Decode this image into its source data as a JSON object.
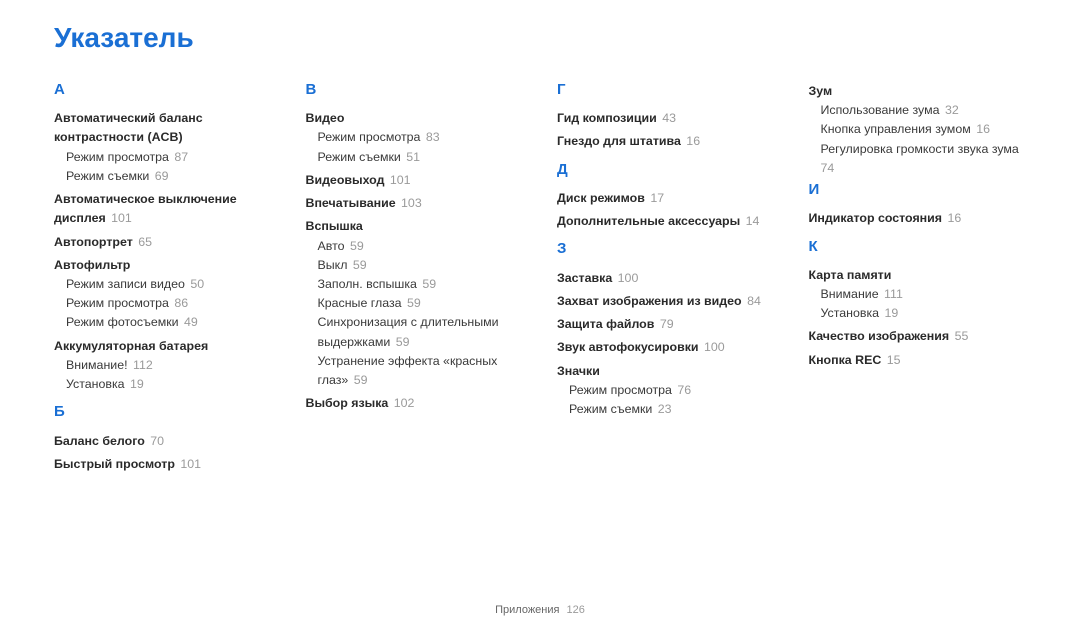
{
  "title": "Указатель",
  "footer": {
    "section": "Приложения",
    "page": "126"
  },
  "columns": [
    [
      {
        "type": "letter",
        "text": "А"
      },
      {
        "type": "head",
        "text": "Автоматический баланс контрастности (ACB)"
      },
      {
        "type": "sub",
        "text": "Режим просмотра",
        "page": "87"
      },
      {
        "type": "sub",
        "text": "Режим съемки",
        "page": "69"
      },
      {
        "type": "head",
        "text": "Автоматическое выключение дисплея",
        "page": "101"
      },
      {
        "type": "head",
        "text": "Автопортрет",
        "page": "65"
      },
      {
        "type": "head",
        "text": "Автофильтр"
      },
      {
        "type": "sub",
        "text": "Режим записи видео",
        "page": "50"
      },
      {
        "type": "sub",
        "text": "Режим просмотра",
        "page": "86"
      },
      {
        "type": "sub",
        "text": "Режим фотосъемки",
        "page": "49"
      },
      {
        "type": "head",
        "text": "Аккумуляторная батарея"
      },
      {
        "type": "sub",
        "text": "Внимание!",
        "page": "112"
      },
      {
        "type": "sub",
        "text": "Установка",
        "page": "19"
      },
      {
        "type": "letter",
        "text": "Б"
      },
      {
        "type": "head",
        "text": "Баланс белого",
        "page": "70"
      },
      {
        "type": "head",
        "text": "Быстрый просмотр",
        "page": "101"
      }
    ],
    [
      {
        "type": "letter",
        "text": "В"
      },
      {
        "type": "head",
        "text": "Видео"
      },
      {
        "type": "sub",
        "text": "Режим просмотра",
        "page": "83"
      },
      {
        "type": "sub",
        "text": "Режим съемки",
        "page": "51"
      },
      {
        "type": "head",
        "text": "Видеовыход",
        "page": "101"
      },
      {
        "type": "head",
        "text": "Впечатывание",
        "page": "103"
      },
      {
        "type": "head",
        "text": "Вспышка"
      },
      {
        "type": "sub",
        "text": "Авто",
        "page": "59"
      },
      {
        "type": "sub",
        "text": "Выкл",
        "page": "59"
      },
      {
        "type": "sub",
        "text": "Заполн. вспышка",
        "page": "59"
      },
      {
        "type": "sub",
        "text": "Красные глаза",
        "page": "59"
      },
      {
        "type": "sub",
        "text": "Синхронизация с длительными выдержками",
        "page": "59"
      },
      {
        "type": "sub",
        "text": "Устранение эффекта «красных глаз»",
        "page": "59"
      },
      {
        "type": "head",
        "text": "Выбор языка",
        "page": "102"
      }
    ],
    [
      {
        "type": "letter",
        "text": "Г"
      },
      {
        "type": "head",
        "text": "Гид композиции",
        "page": "43"
      },
      {
        "type": "head",
        "text": "Гнездо для штатива",
        "page": "16"
      },
      {
        "type": "letter",
        "text": "Д"
      },
      {
        "type": "head",
        "text": "Диск режимов",
        "page": "17"
      },
      {
        "type": "head",
        "text": "Дополнительные аксессуары",
        "page": "14"
      },
      {
        "type": "letter",
        "text": "З"
      },
      {
        "type": "head",
        "text": "Заставка",
        "page": "100"
      },
      {
        "type": "head",
        "text": "Захват изображения из видео",
        "page": "84"
      },
      {
        "type": "head",
        "text": "Защита файлов",
        "page": "79"
      },
      {
        "type": "head",
        "text": "Звук автофокусировки",
        "page": "100"
      },
      {
        "type": "head",
        "text": "Значки"
      },
      {
        "type": "sub",
        "text": "Режим просмотра",
        "page": "76"
      },
      {
        "type": "sub",
        "text": "Режим съемки",
        "page": "23"
      }
    ],
    [
      {
        "type": "head",
        "text": "Зум"
      },
      {
        "type": "sub",
        "text": "Использование зума",
        "page": "32"
      },
      {
        "type": "sub",
        "text": "Кнопка управления зумом",
        "page": "16"
      },
      {
        "type": "sub",
        "text": "Регулировка громкости звука зума",
        "page": "74"
      },
      {
        "type": "letter",
        "text": "И"
      },
      {
        "type": "head",
        "text": "Индикатор состояния",
        "page": "16"
      },
      {
        "type": "letter",
        "text": "К"
      },
      {
        "type": "head",
        "text": "Карта памяти"
      },
      {
        "type": "sub",
        "text": "Внимание",
        "page": "111"
      },
      {
        "type": "sub",
        "text": "Установка",
        "page": "19"
      },
      {
        "type": "head",
        "text": "Качество изображения",
        "page": "55"
      },
      {
        "type": "head",
        "text": "Кнопка REC",
        "page": "15"
      }
    ]
  ]
}
